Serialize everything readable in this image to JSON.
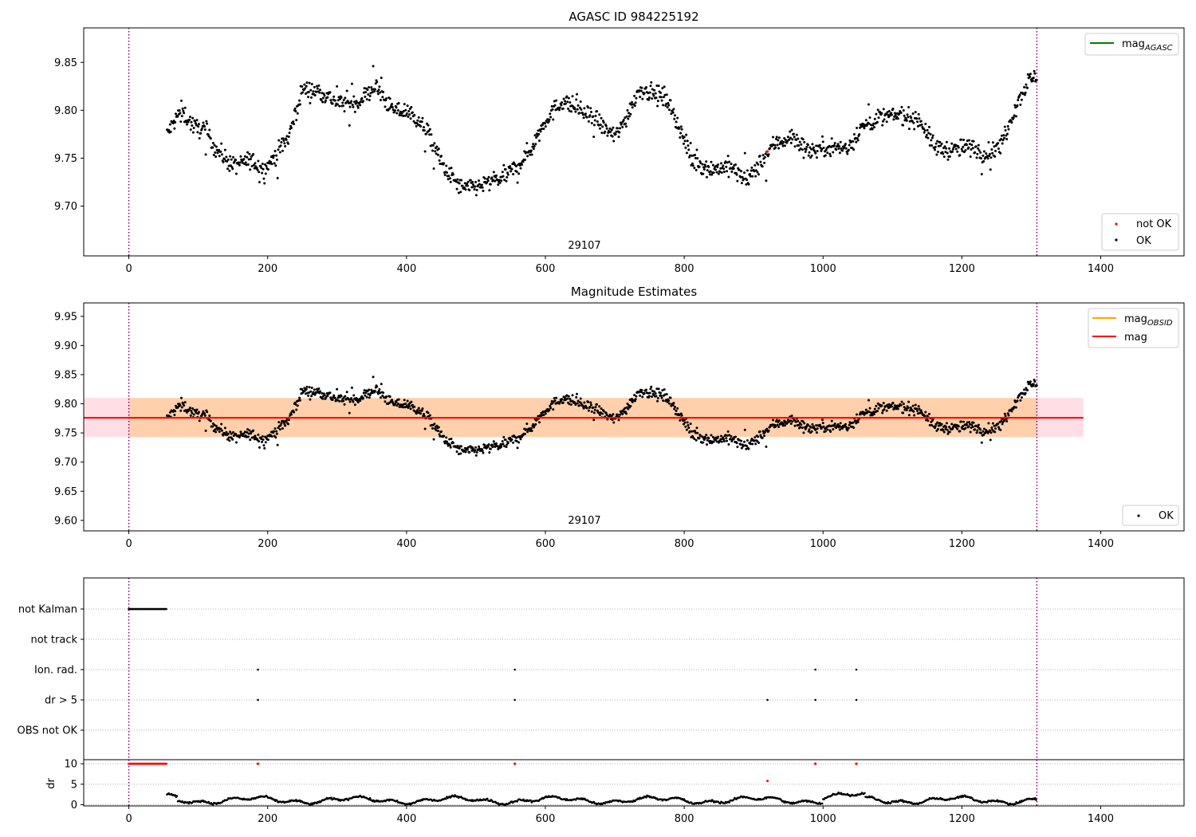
{
  "chart_data": [
    {
      "type": "scatter",
      "title": "AGASC ID 984225192",
      "xlim": [
        -65,
        1520
      ],
      "ylim": [
        9.648,
        9.886
      ],
      "x_ticks": [
        0,
        200,
        400,
        600,
        800,
        1000,
        1200,
        1400
      ],
      "y_ticks": [
        "9.70",
        "9.75",
        "9.80",
        "9.85"
      ],
      "obsid_label": "29107",
      "obsid_label_x": 655,
      "vlines_x": [
        0,
        1308
      ],
      "vline_color": "#800080",
      "series": [
        {
          "name": "not OK",
          "color": "#ff0000",
          "x": [
            920
          ],
          "y": [
            9.757
          ]
        },
        {
          "name": "OK",
          "color": "#000000",
          "x_range": [
            55,
            1308
          ]
        }
      ],
      "legend_lines": [
        {
          "name": "mag",
          "sub": "AGASC",
          "color": "#008000"
        }
      ],
      "legend_lines_position": "upper right",
      "legend_points_position": "lower right",
      "curve": [
        [
          55,
          9.775
        ],
        [
          75,
          9.8
        ],
        [
          95,
          9.782
        ],
        [
          110,
          9.78
        ],
        [
          125,
          9.76
        ],
        [
          150,
          9.742
        ],
        [
          175,
          9.748
        ],
        [
          195,
          9.738
        ],
        [
          210,
          9.752
        ],
        [
          230,
          9.772
        ],
        [
          250,
          9.822
        ],
        [
          275,
          9.82
        ],
        [
          300,
          9.808
        ],
        [
          330,
          9.808
        ],
        [
          355,
          9.825
        ],
        [
          380,
          9.8
        ],
        [
          405,
          9.798
        ],
        [
          430,
          9.778
        ],
        [
          455,
          9.738
        ],
        [
          480,
          9.718
        ],
        [
          510,
          9.722
        ],
        [
          540,
          9.73
        ],
        [
          560,
          9.742
        ],
        [
          580,
          9.76
        ],
        [
          600,
          9.79
        ],
        [
          625,
          9.81
        ],
        [
          650,
          9.8
        ],
        [
          675,
          9.788
        ],
        [
          700,
          9.772
        ],
        [
          715,
          9.79
        ],
        [
          735,
          9.822
        ],
        [
          755,
          9.818
        ],
        [
          775,
          9.812
        ],
        [
          790,
          9.788
        ],
        [
          810,
          9.748
        ],
        [
          840,
          9.738
        ],
        [
          865,
          9.742
        ],
        [
          890,
          9.726
        ],
        [
          905,
          9.74
        ],
        [
          930,
          9.765
        ],
        [
          955,
          9.772
        ],
        [
          980,
          9.758
        ],
        [
          1010,
          9.762
        ],
        [
          1035,
          9.76
        ],
        [
          1055,
          9.782
        ],
        [
          1080,
          9.792
        ],
        [
          1110,
          9.795
        ],
        [
          1140,
          9.79
        ],
        [
          1160,
          9.762
        ],
        [
          1185,
          9.758
        ],
        [
          1210,
          9.762
        ],
        [
          1235,
          9.755
        ],
        [
          1255,
          9.762
        ],
        [
          1275,
          9.8
        ],
        [
          1295,
          9.83
        ],
        [
          1308,
          9.835
        ]
      ]
    },
    {
      "type": "scatter",
      "title": "Magnitude Estimates",
      "xlim": [
        -65,
        1520
      ],
      "ylim": [
        9.582,
        9.973
      ],
      "x_ticks": [
        0,
        200,
        400,
        600,
        800,
        1000,
        1200,
        1400
      ],
      "y_ticks": [
        "9.60",
        "9.65",
        "9.70",
        "9.75",
        "9.80",
        "9.85",
        "9.90",
        "9.95"
      ],
      "obsid_label": "29107",
      "obsid_label_x": 655,
      "vlines_x": [
        0,
        1308
      ],
      "vline_color": "#800080",
      "series": [
        {
          "name": "OK",
          "color": "#000000",
          "x_range": [
            55,
            1308
          ]
        }
      ],
      "mag_line": {
        "y": 9.776,
        "x_range": [
          -65,
          1375
        ],
        "color": "#ff0000"
      },
      "band_outer": {
        "y": [
          9.743,
          9.81
        ],
        "color": "#ffc0cb"
      },
      "band_inner": {
        "y": [
          9.743,
          9.81
        ],
        "color": "#ffa500"
      },
      "legend_lines": [
        {
          "name": "mag",
          "sub": "OBSID",
          "color": "#ffa500"
        },
        {
          "name": "mag",
          "sub": "",
          "color": "#ff0000"
        }
      ],
      "legend_lines_position": "upper right",
      "legend_points_position": "lower right"
    },
    {
      "type": "scatter",
      "title": "",
      "xlim": [
        -65,
        1520
      ],
      "categories": [
        "not Kalman",
        "not track",
        "Ion. rad.",
        "dr > 5",
        "OBS not OK"
      ],
      "flags": {
        "not Kalman": {
          "x_range": [
            0,
            55
          ]
        },
        "not track": {
          "x": []
        },
        "Ion. rad.": {
          "x": [
            186,
            556,
            989,
            1048
          ]
        },
        "dr > 5": {
          "x": [
            186,
            556,
            920,
            989,
            1048
          ]
        },
        "OBS not OK": {
          "x": []
        }
      },
      "vlines_x": [
        0,
        1308
      ],
      "vline_color": "#800080"
    },
    {
      "type": "scatter",
      "title": "",
      "xlim": [
        -65,
        1520
      ],
      "ylim": [
        -0.3,
        11
      ],
      "ylabel": "dr",
      "x_ticks": [
        0,
        200,
        400,
        600,
        800,
        1000,
        1200,
        1400
      ],
      "y_ticks": [
        "0",
        "5",
        "10"
      ],
      "capped_points_x_range": [
        0,
        55
      ],
      "capped_points_x": [
        186,
        556,
        989,
        1048
      ],
      "capped_value": 10,
      "outlier": {
        "x": 920,
        "y": 5.8
      },
      "vlines_x": [
        0,
        1308
      ],
      "vline_color": "#800080",
      "track_x_range": [
        55,
        1308
      ]
    }
  ]
}
